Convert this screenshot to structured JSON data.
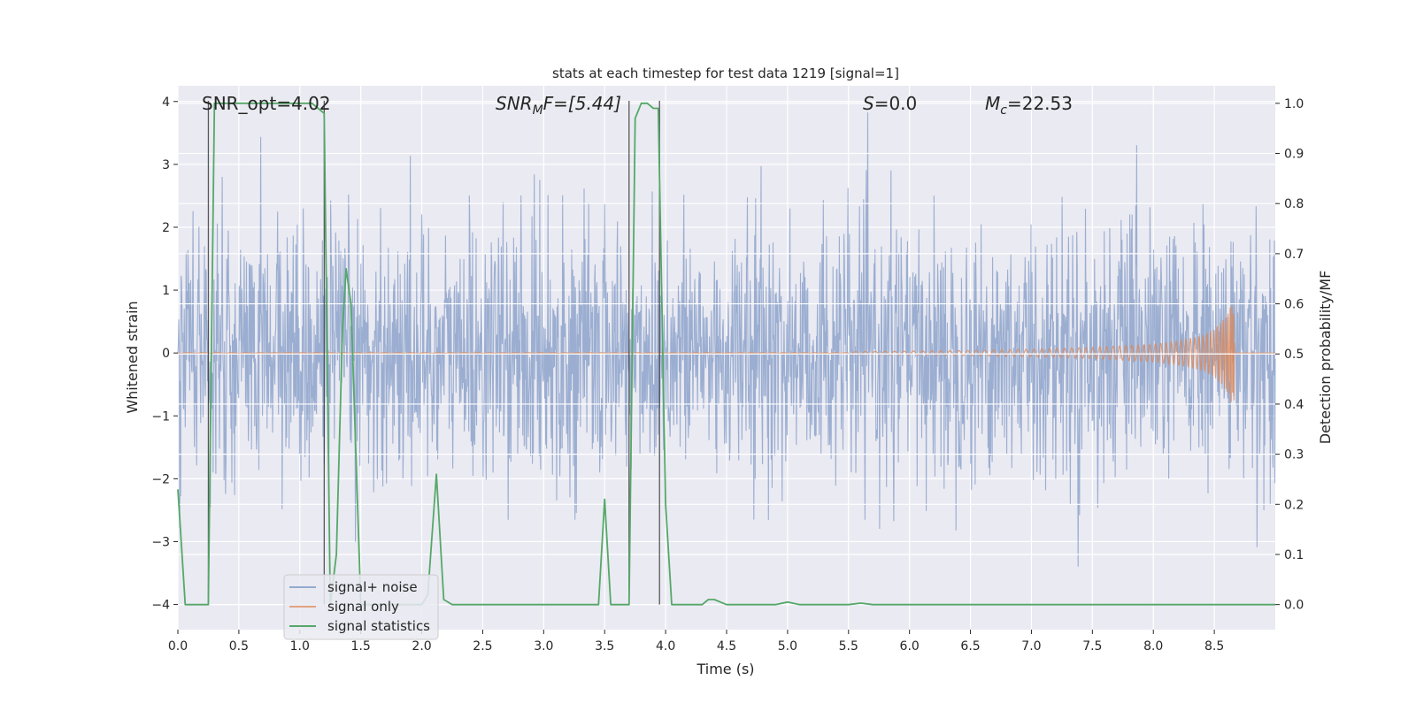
{
  "chart_data": {
    "type": "line",
    "title": "stats at each timestep for test data 1219 [signal=1]",
    "xlabel": "Time (s)",
    "ylabel_left": "Whitened strain",
    "ylabel_right": "Detection probability/MF",
    "xlim": [
      0.0,
      9.0
    ],
    "ylim_left": [
      -4.4,
      4.25
    ],
    "ylim_right": [
      -0.05,
      1.035
    ],
    "x_ticks": [
      "0.0",
      "0.5",
      "1.0",
      "1.5",
      "2.0",
      "2.5",
      "3.0",
      "3.5",
      "4.0",
      "4.5",
      "5.0",
      "5.5",
      "6.0",
      "6.5",
      "7.0",
      "7.5",
      "8.0",
      "8.5"
    ],
    "y_left_ticks": [
      "4",
      "3",
      "2",
      "1",
      "0",
      "−1",
      "−2",
      "−3",
      "−4"
    ],
    "y_right_ticks": [
      "1.0",
      "0.9",
      "0.8",
      "0.7",
      "0.6",
      "0.5",
      "0.4",
      "0.3",
      "0.2",
      "0.1",
      "0.0"
    ],
    "grid": true,
    "legend_position": "lower-left",
    "annotations": {
      "snr_opt": "SNR_opt=4.02",
      "snr_mf_main": "SNR",
      "snr_mf_sub": "M",
      "snr_mf_rest": "F=[5.44]",
      "s_label": "S",
      "s_value": "=0.0",
      "mc_main": "M",
      "mc_sub": "c",
      "mc_value": "=22.53"
    },
    "series": [
      {
        "name": "signal+ noise",
        "color": "#4c72b0",
        "axis": "left",
        "description_values": "stationary whitened noise, std approx 1, peaks near ±3.9"
      },
      {
        "name": "signal only",
        "color": "#dd8452",
        "axis": "left",
        "x": [
          5.5,
          6.0,
          6.5,
          7.0,
          7.5,
          8.0,
          8.2,
          8.4,
          8.5,
          8.6,
          8.66,
          8.67
        ],
        "envelope": [
          0.02,
          0.03,
          0.04,
          0.06,
          0.09,
          0.14,
          0.19,
          0.28,
          0.38,
          0.6,
          0.9,
          0.0
        ]
      },
      {
        "name": "signal statistics",
        "color": "#55a868",
        "axis": "right",
        "x": [
          0.0,
          0.06,
          0.2,
          0.25,
          0.3,
          0.4,
          1.1,
          1.15,
          1.2,
          1.25,
          1.3,
          1.35,
          1.38,
          1.42,
          1.5,
          1.6,
          1.9,
          2.0,
          2.05,
          2.12,
          2.18,
          2.25,
          3.4,
          3.45,
          3.5,
          3.55,
          3.6,
          3.7,
          3.75,
          3.8,
          3.85,
          3.9,
          3.94,
          4.0,
          4.05,
          4.1,
          4.3,
          4.35,
          4.4,
          4.5,
          4.6,
          4.9,
          5.0,
          5.1,
          5.2,
          5.5,
          5.6,
          5.7,
          6.0,
          9.0
        ],
        "values": [
          0.23,
          0.0,
          0.0,
          0.0,
          1.0,
          1.0,
          1.0,
          0.99,
          0.98,
          0.0,
          0.1,
          0.55,
          0.67,
          0.6,
          0.0,
          0.0,
          0.0,
          0.0,
          0.02,
          0.26,
          0.01,
          0.0,
          0.0,
          0.0,
          0.21,
          0.0,
          0.0,
          0.0,
          0.97,
          1.0,
          1.0,
          0.99,
          0.99,
          0.2,
          0.0,
          0.0,
          0.0,
          0.01,
          0.01,
          0.0,
          0.0,
          0.0,
          0.005,
          0.0,
          0.0,
          0.0,
          0.003,
          0.0,
          0.0,
          0.0
        ]
      }
    ],
    "vertical_lines": [
      0.25,
      1.2,
      3.7,
      3.95
    ]
  }
}
